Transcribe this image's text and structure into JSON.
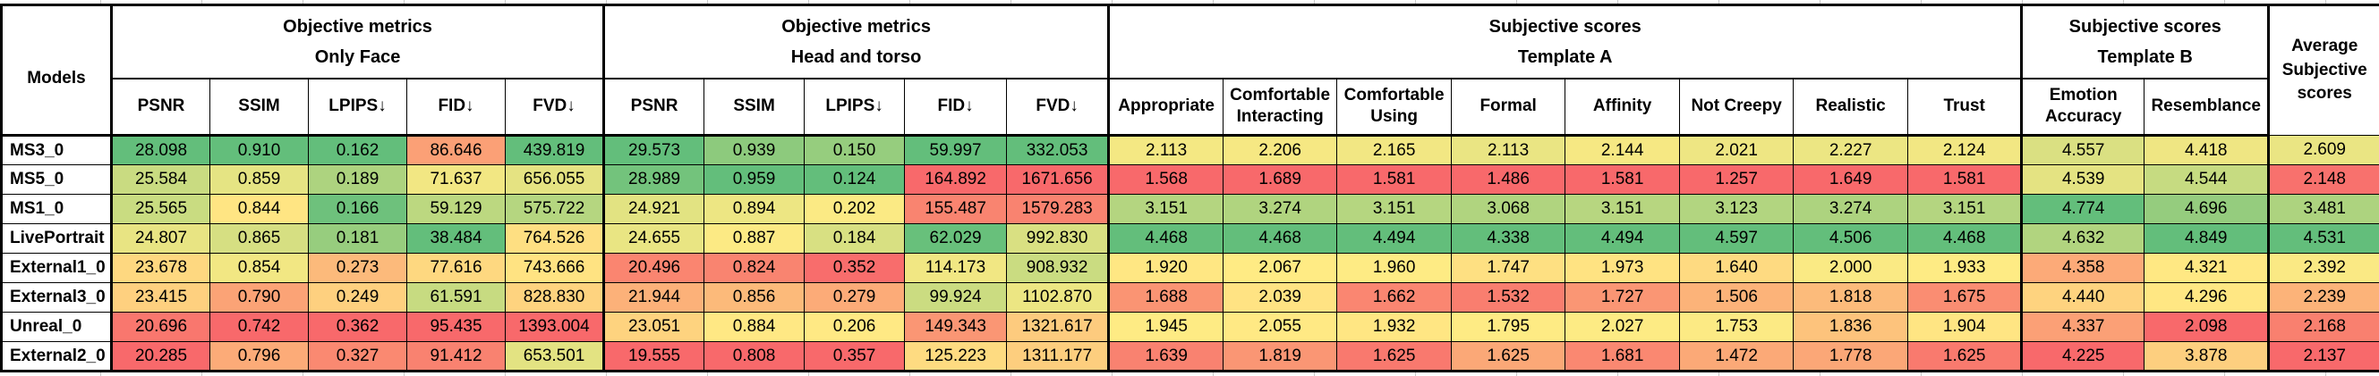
{
  "chart_data": {
    "type": "table",
    "style": "heatmap-conditional-formatting",
    "corner_header": "Models",
    "column_groups": [
      {
        "label": "Objective metrics\nOnly Face",
        "span": 5
      },
      {
        "label": "Objective metrics\nHead and torso",
        "span": 5
      },
      {
        "label": "Subjective scores\nTemplate A",
        "span": 8
      },
      {
        "label": "Subjective scores\nTemplate B",
        "span": 2
      }
    ],
    "average_column": {
      "label": "Average Subjective scores",
      "lower_better": false
    },
    "columns": [
      {
        "label": "PSNR",
        "lower_better": false
      },
      {
        "label": "SSIM",
        "lower_better": false
      },
      {
        "label": "LPIPS↓",
        "lower_better": true
      },
      {
        "label": "FID↓",
        "lower_better": true
      },
      {
        "label": "FVD↓",
        "lower_better": true
      },
      {
        "label": "PSNR",
        "lower_better": false
      },
      {
        "label": "SSIM",
        "lower_better": false
      },
      {
        "label": "LPIPS↓",
        "lower_better": true
      },
      {
        "label": "FID↓",
        "lower_better": true
      },
      {
        "label": "FVD↓",
        "lower_better": true
      },
      {
        "label": "Appropriate",
        "lower_better": false
      },
      {
        "label": "Comfortable Interacting",
        "lower_better": false
      },
      {
        "label": "Comfortable Using",
        "lower_better": false
      },
      {
        "label": "Formal",
        "lower_better": false
      },
      {
        "label": "Affinity",
        "lower_better": false
      },
      {
        "label": "Not Creepy",
        "lower_better": false
      },
      {
        "label": "Realistic",
        "lower_better": false
      },
      {
        "label": "Trust",
        "lower_better": false
      },
      {
        "label": "Emotion Accuracy",
        "lower_better": false
      },
      {
        "label": "Resemblance",
        "lower_better": false
      }
    ],
    "rows": [
      {
        "model": "MS3_0",
        "values": [
          "28.098",
          "0.910",
          "0.162",
          "86.646",
          "439.819",
          "29.573",
          "0.939",
          "0.150",
          "59.997",
          "332.053",
          "2.113",
          "2.206",
          "2.165",
          "2.113",
          "2.144",
          "2.021",
          "2.227",
          "2.124",
          "4.557",
          "4.418",
          "2.609"
        ]
      },
      {
        "model": "MS5_0",
        "values": [
          "25.584",
          "0.859",
          "0.189",
          "71.637",
          "656.055",
          "28.989",
          "0.959",
          "0.124",
          "164.892",
          "1671.656",
          "1.568",
          "1.689",
          "1.581",
          "1.486",
          "1.581",
          "1.257",
          "1.649",
          "1.581",
          "4.539",
          "4.544",
          "2.148"
        ]
      },
      {
        "model": "MS1_0",
        "values": [
          "25.565",
          "0.844",
          "0.166",
          "59.129",
          "575.722",
          "24.921",
          "0.894",
          "0.202",
          "155.487",
          "1579.283",
          "3.151",
          "3.274",
          "3.151",
          "3.068",
          "3.151",
          "3.123",
          "3.274",
          "3.151",
          "4.774",
          "4.696",
          "3.481"
        ]
      },
      {
        "model": "LivePortrait",
        "values": [
          "24.807",
          "0.865",
          "0.181",
          "38.484",
          "764.526",
          "24.655",
          "0.887",
          "0.184",
          "62.029",
          "992.830",
          "4.468",
          "4.468",
          "4.494",
          "4.338",
          "4.494",
          "4.597",
          "4.506",
          "4.468",
          "4.632",
          "4.849",
          "4.531"
        ]
      },
      {
        "model": "External1_0",
        "values": [
          "23.678",
          "0.854",
          "0.273",
          "77.616",
          "743.666",
          "20.496",
          "0.824",
          "0.352",
          "114.173",
          "908.932",
          "1.920",
          "2.067",
          "1.960",
          "1.747",
          "1.973",
          "1.640",
          "2.000",
          "1.933",
          "4.358",
          "4.321",
          "2.392"
        ]
      },
      {
        "model": "External3_0",
        "values": [
          "23.415",
          "0.790",
          "0.249",
          "61.591",
          "828.830",
          "21.944",
          "0.856",
          "0.279",
          "99.924",
          "1102.870",
          "1.688",
          "2.039",
          "1.662",
          "1.532",
          "1.727",
          "1.506",
          "1.818",
          "1.675",
          "4.440",
          "4.296",
          "2.239"
        ]
      },
      {
        "model": "Unreal_0",
        "values": [
          "20.696",
          "0.742",
          "0.362",
          "95.435",
          "1393.004",
          "23.051",
          "0.884",
          "0.206",
          "149.343",
          "1321.617",
          "1.945",
          "2.055",
          "1.932",
          "1.795",
          "2.027",
          "1.753",
          "1.836",
          "1.904",
          "4.337",
          "2.098",
          "2.168"
        ]
      },
      {
        "model": "External2_0",
        "values": [
          "20.285",
          "0.796",
          "0.327",
          "91.412",
          "653.501",
          "19.555",
          "0.808",
          "0.357",
          "125.223",
          "1311.177",
          "1.639",
          "1.819",
          "1.625",
          "1.625",
          "1.681",
          "1.472",
          "1.778",
          "1.625",
          "4.225",
          "3.878",
          "2.137"
        ]
      }
    ],
    "heatmap_colors": {
      "low": "#F8696B",
      "mid": "#FFEB84",
      "high": "#63BE7B"
    },
    "layout_hints": {
      "heatmap_scale": "per-column 3-color scale, midpoint = 50th percentile; inverted for ↓ columns",
      "grid": "on"
    }
  }
}
